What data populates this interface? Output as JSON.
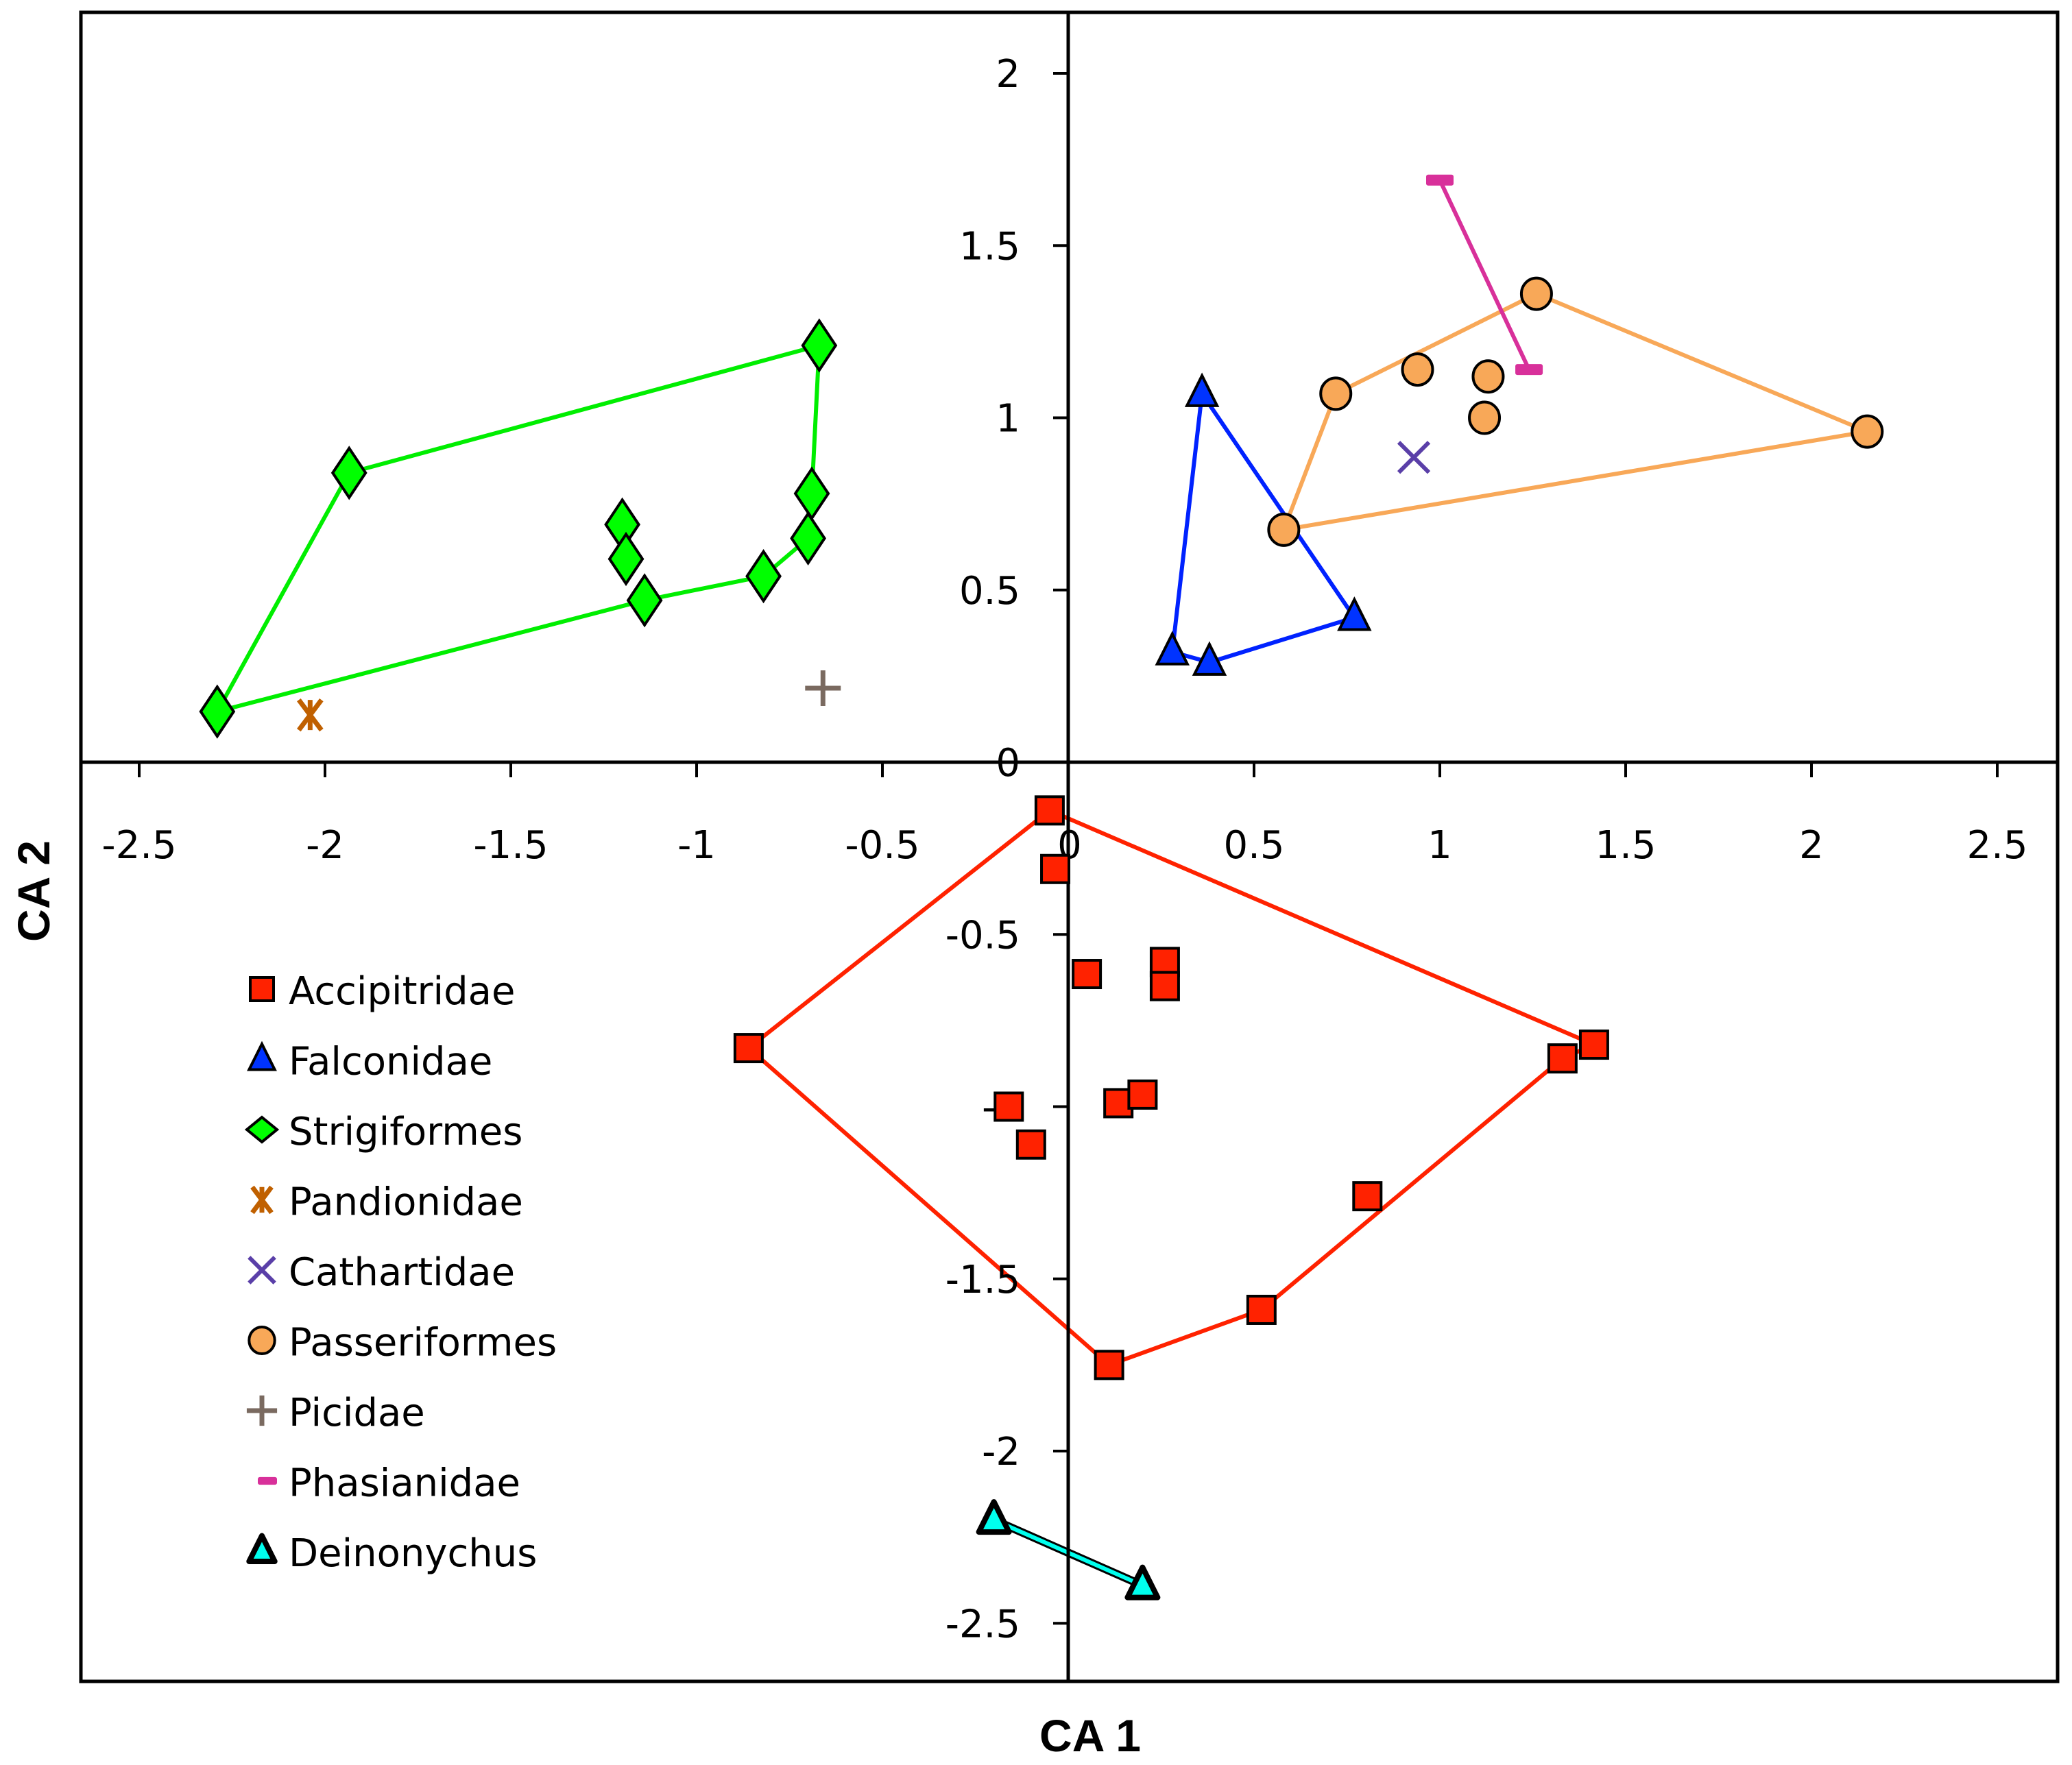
{
  "chart_data": {
    "type": "scatter",
    "title": "",
    "xlabel": "CA 1",
    "ylabel": "CA 2",
    "xlim": [
      -2.66,
      2.66
    ],
    "ylim": [
      -2.67,
      2.18
    ],
    "grid": false,
    "legend_position": "left-middle",
    "x_ticks": [
      {
        "value": -2.5,
        "label": "-2.5"
      },
      {
        "value": -2,
        "label": "-2"
      },
      {
        "value": -1.5,
        "label": "-1.5"
      },
      {
        "value": -1,
        "label": "-1"
      },
      {
        "value": -0.5,
        "label": "-0.5"
      },
      {
        "value": 0,
        "label": "0"
      },
      {
        "value": 0.5,
        "label": "0.5"
      },
      {
        "value": 1,
        "label": "1"
      },
      {
        "value": 1.5,
        "label": "1.5"
      },
      {
        "value": 2,
        "label": "2"
      },
      {
        "value": 2.5,
        "label": "2.5"
      }
    ],
    "y_ticks": [
      {
        "value": 2,
        "label": "2"
      },
      {
        "value": 1.5,
        "label": "1.5"
      },
      {
        "value": 1,
        "label": "1"
      },
      {
        "value": 0.5,
        "label": "0.5"
      },
      {
        "value": 0,
        "label": "0"
      },
      {
        "value": -0.5,
        "label": "-0.5"
      },
      {
        "value": -1,
        "label": "-1"
      },
      {
        "value": -1.5,
        "label": "-1.5"
      },
      {
        "value": -2,
        "label": "-2"
      },
      {
        "value": -2.5,
        "label": "-2.5"
      }
    ],
    "series": [
      {
        "name": "Accipitridae",
        "marker": "square",
        "color": "#ff2200",
        "line_color": "#ff2200",
        "points": [
          [
            -0.05,
            -0.14
          ],
          [
            -0.035,
            -0.31
          ],
          [
            -0.86,
            -0.83
          ],
          [
            0.05,
            -0.615
          ],
          [
            0.26,
            -0.58
          ],
          [
            0.26,
            -0.65
          ],
          [
            -0.16,
            -1.0
          ],
          [
            -0.1,
            -1.11
          ],
          [
            0.135,
            -0.99
          ],
          [
            0.2,
            -0.965
          ],
          [
            1.415,
            -0.82
          ],
          [
            1.33,
            -0.86
          ],
          [
            0.805,
            -1.26
          ],
          [
            0.52,
            -1.59
          ],
          [
            0.11,
            -1.75
          ]
        ],
        "hull": [
          [
            -0.05,
            -0.14
          ],
          [
            1.415,
            -0.82
          ],
          [
            1.33,
            -0.86
          ],
          [
            0.52,
            -1.59
          ],
          [
            0.11,
            -1.75
          ],
          [
            -0.86,
            -0.83
          ]
        ]
      },
      {
        "name": "Falconidae",
        "marker": "triangle",
        "color": "#0033ff",
        "line_color": "#0022ff",
        "points": [
          [
            0.36,
            1.07
          ],
          [
            0.28,
            0.32
          ],
          [
            0.38,
            0.29
          ],
          [
            0.77,
            0.42
          ]
        ],
        "hull": [
          [
            0.36,
            1.07
          ],
          [
            0.77,
            0.42
          ],
          [
            0.38,
            0.29
          ],
          [
            0.28,
            0.32
          ]
        ]
      },
      {
        "name": "Strigiformes",
        "marker": "diamond",
        "color": "#00ff00",
        "line_color": "#00ee00",
        "points": [
          [
            -2.29,
            0.147
          ],
          [
            -1.935,
            0.84
          ],
          [
            -0.67,
            1.21
          ],
          [
            -0.69,
            0.78
          ],
          [
            -0.7,
            0.65
          ],
          [
            -0.82,
            0.54
          ],
          [
            -1.14,
            0.47
          ],
          [
            -1.2,
            0.69
          ],
          [
            -1.19,
            0.59
          ]
        ],
        "hull": [
          [
            -2.29,
            0.147
          ],
          [
            -1.935,
            0.84
          ],
          [
            -0.67,
            1.21
          ],
          [
            -0.69,
            0.78
          ],
          [
            -0.7,
            0.65
          ],
          [
            -0.82,
            0.54
          ],
          [
            -1.14,
            0.47
          ]
        ]
      },
      {
        "name": "Pandionidae",
        "marker": "asterisk",
        "color": "#c06000",
        "points": [
          [
            -2.04,
            0.137
          ]
        ]
      },
      {
        "name": "Cathartidae",
        "marker": "x",
        "color": "#5a3fa8",
        "points": [
          [
            0.93,
            0.885
          ]
        ]
      },
      {
        "name": "Passeriformes",
        "marker": "circle",
        "color": "#f8a858",
        "line_color": "#f8a858",
        "points": [
          [
            0.58,
            0.675
          ],
          [
            0.72,
            1.07
          ],
          [
            0.94,
            1.14
          ],
          [
            1.13,
            1.12
          ],
          [
            1.12,
            1.0
          ],
          [
            1.26,
            1.36
          ],
          [
            2.15,
            0.96
          ]
        ],
        "hull": [
          [
            0.58,
            0.675
          ],
          [
            0.72,
            1.07
          ],
          [
            1.26,
            1.36
          ],
          [
            2.15,
            0.96
          ]
        ]
      },
      {
        "name": "Picidae",
        "marker": "plus",
        "color": "#7a6a60",
        "points": [
          [
            -0.66,
            0.215
          ]
        ]
      },
      {
        "name": "Phasianidae",
        "marker": "dash",
        "color": "#d8309a",
        "line_color": "#d8309a",
        "points": [
          [
            1.0,
            1.69
          ],
          [
            1.24,
            1.14
          ]
        ],
        "hull": [
          [
            1.0,
            1.69
          ],
          [
            1.24,
            1.14
          ]
        ],
        "open": true
      },
      {
        "name": "Deinonychus",
        "marker": "triangle-bold",
        "color": "#00ffee",
        "line_color": "#00ffee",
        "points": [
          [
            -0.2,
            -2.2
          ],
          [
            0.2,
            -2.39
          ]
        ],
        "hull": [
          [
            -0.2,
            -2.2
          ],
          [
            0.2,
            -2.39
          ]
        ],
        "open": true,
        "outlined_line": true
      }
    ]
  }
}
